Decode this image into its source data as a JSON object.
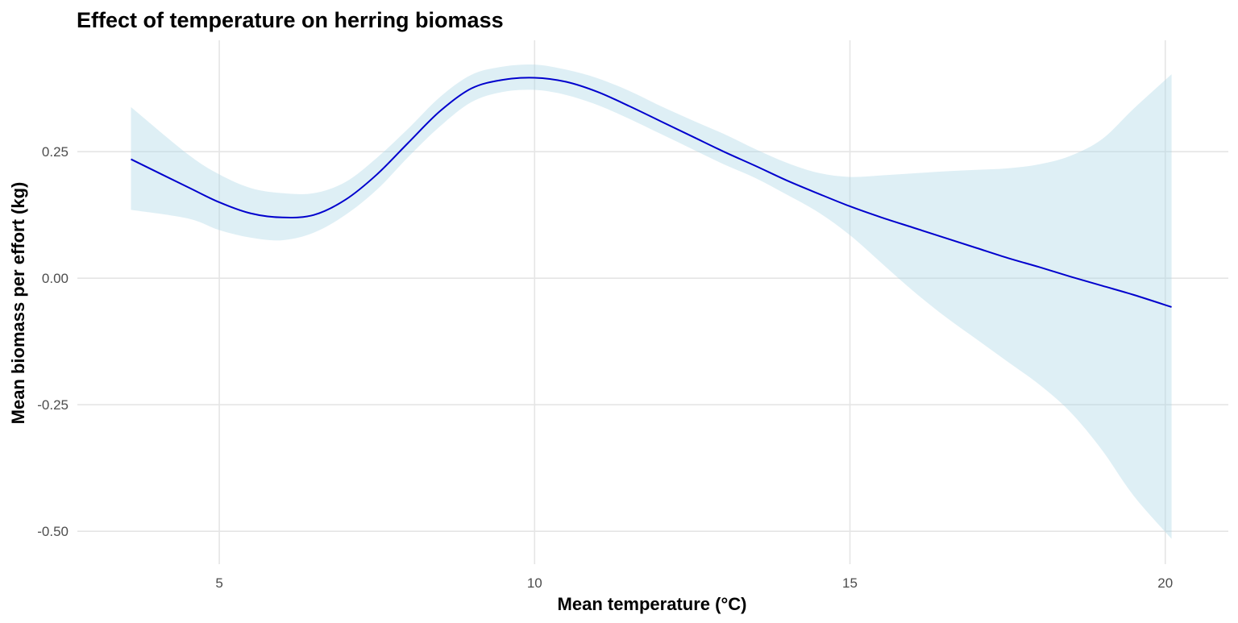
{
  "chart_data": {
    "type": "line",
    "title": "Effect of temperature on herring biomass",
    "xlabel": "Mean temperature (°C)",
    "ylabel": "Mean biomass per effort (kg)",
    "xlim": [
      2.75,
      21.0
    ],
    "ylim": [
      -0.565,
      0.47
    ],
    "x_ticks": [
      {
        "value": 5,
        "label": "5"
      },
      {
        "value": 10,
        "label": "10"
      },
      {
        "value": 15,
        "label": "15"
      },
      {
        "value": 20,
        "label": "20"
      }
    ],
    "y_ticks": [
      {
        "value": 0.25,
        "label": "0.25"
      },
      {
        "value": 0.0,
        "label": "0.00"
      },
      {
        "value": -0.25,
        "label": "-0.25"
      },
      {
        "value": -0.5,
        "label": "-0.50"
      }
    ],
    "grid": true,
    "line_color": "#0000CD",
    "ribbon_color": "#ADD8E6",
    "series": [
      {
        "x": [
          3.6,
          4.5,
          5.0,
          5.5,
          6.0,
          6.5,
          7.0,
          7.5,
          8.0,
          8.5,
          9.0,
          9.5,
          10.0,
          10.5,
          11.0,
          11.5,
          12.0,
          12.5,
          13.0,
          13.5,
          14.0,
          14.5,
          15.0,
          15.5,
          16.0,
          16.5,
          17.0,
          17.5,
          18.0,
          18.5,
          19.0,
          19.5,
          20.1
        ],
        "y": [
          0.235,
          0.18,
          0.15,
          0.128,
          0.12,
          0.125,
          0.155,
          0.205,
          0.268,
          0.33,
          0.375,
          0.392,
          0.396,
          0.388,
          0.368,
          0.34,
          0.31,
          0.28,
          0.25,
          0.222,
          0.193,
          0.167,
          0.142,
          0.12,
          0.1,
          0.08,
          0.06,
          0.04,
          0.022,
          0.003,
          -0.015,
          -0.033,
          -0.057
        ],
        "lower": [
          0.135,
          0.118,
          0.095,
          0.08,
          0.075,
          0.09,
          0.125,
          0.175,
          0.24,
          0.3,
          0.348,
          0.368,
          0.372,
          0.362,
          0.342,
          0.315,
          0.285,
          0.255,
          0.225,
          0.198,
          0.165,
          0.13,
          0.085,
          0.03,
          -0.025,
          -0.075,
          -0.12,
          -0.165,
          -0.21,
          -0.265,
          -0.34,
          -0.43,
          -0.515
        ],
        "upper": [
          0.338,
          0.245,
          0.205,
          0.178,
          0.168,
          0.168,
          0.19,
          0.238,
          0.296,
          0.358,
          0.402,
          0.418,
          0.422,
          0.412,
          0.395,
          0.37,
          0.34,
          0.312,
          0.285,
          0.255,
          0.228,
          0.208,
          0.2,
          0.203,
          0.207,
          0.211,
          0.214,
          0.217,
          0.225,
          0.242,
          0.275,
          0.335,
          0.403
        ]
      }
    ]
  }
}
